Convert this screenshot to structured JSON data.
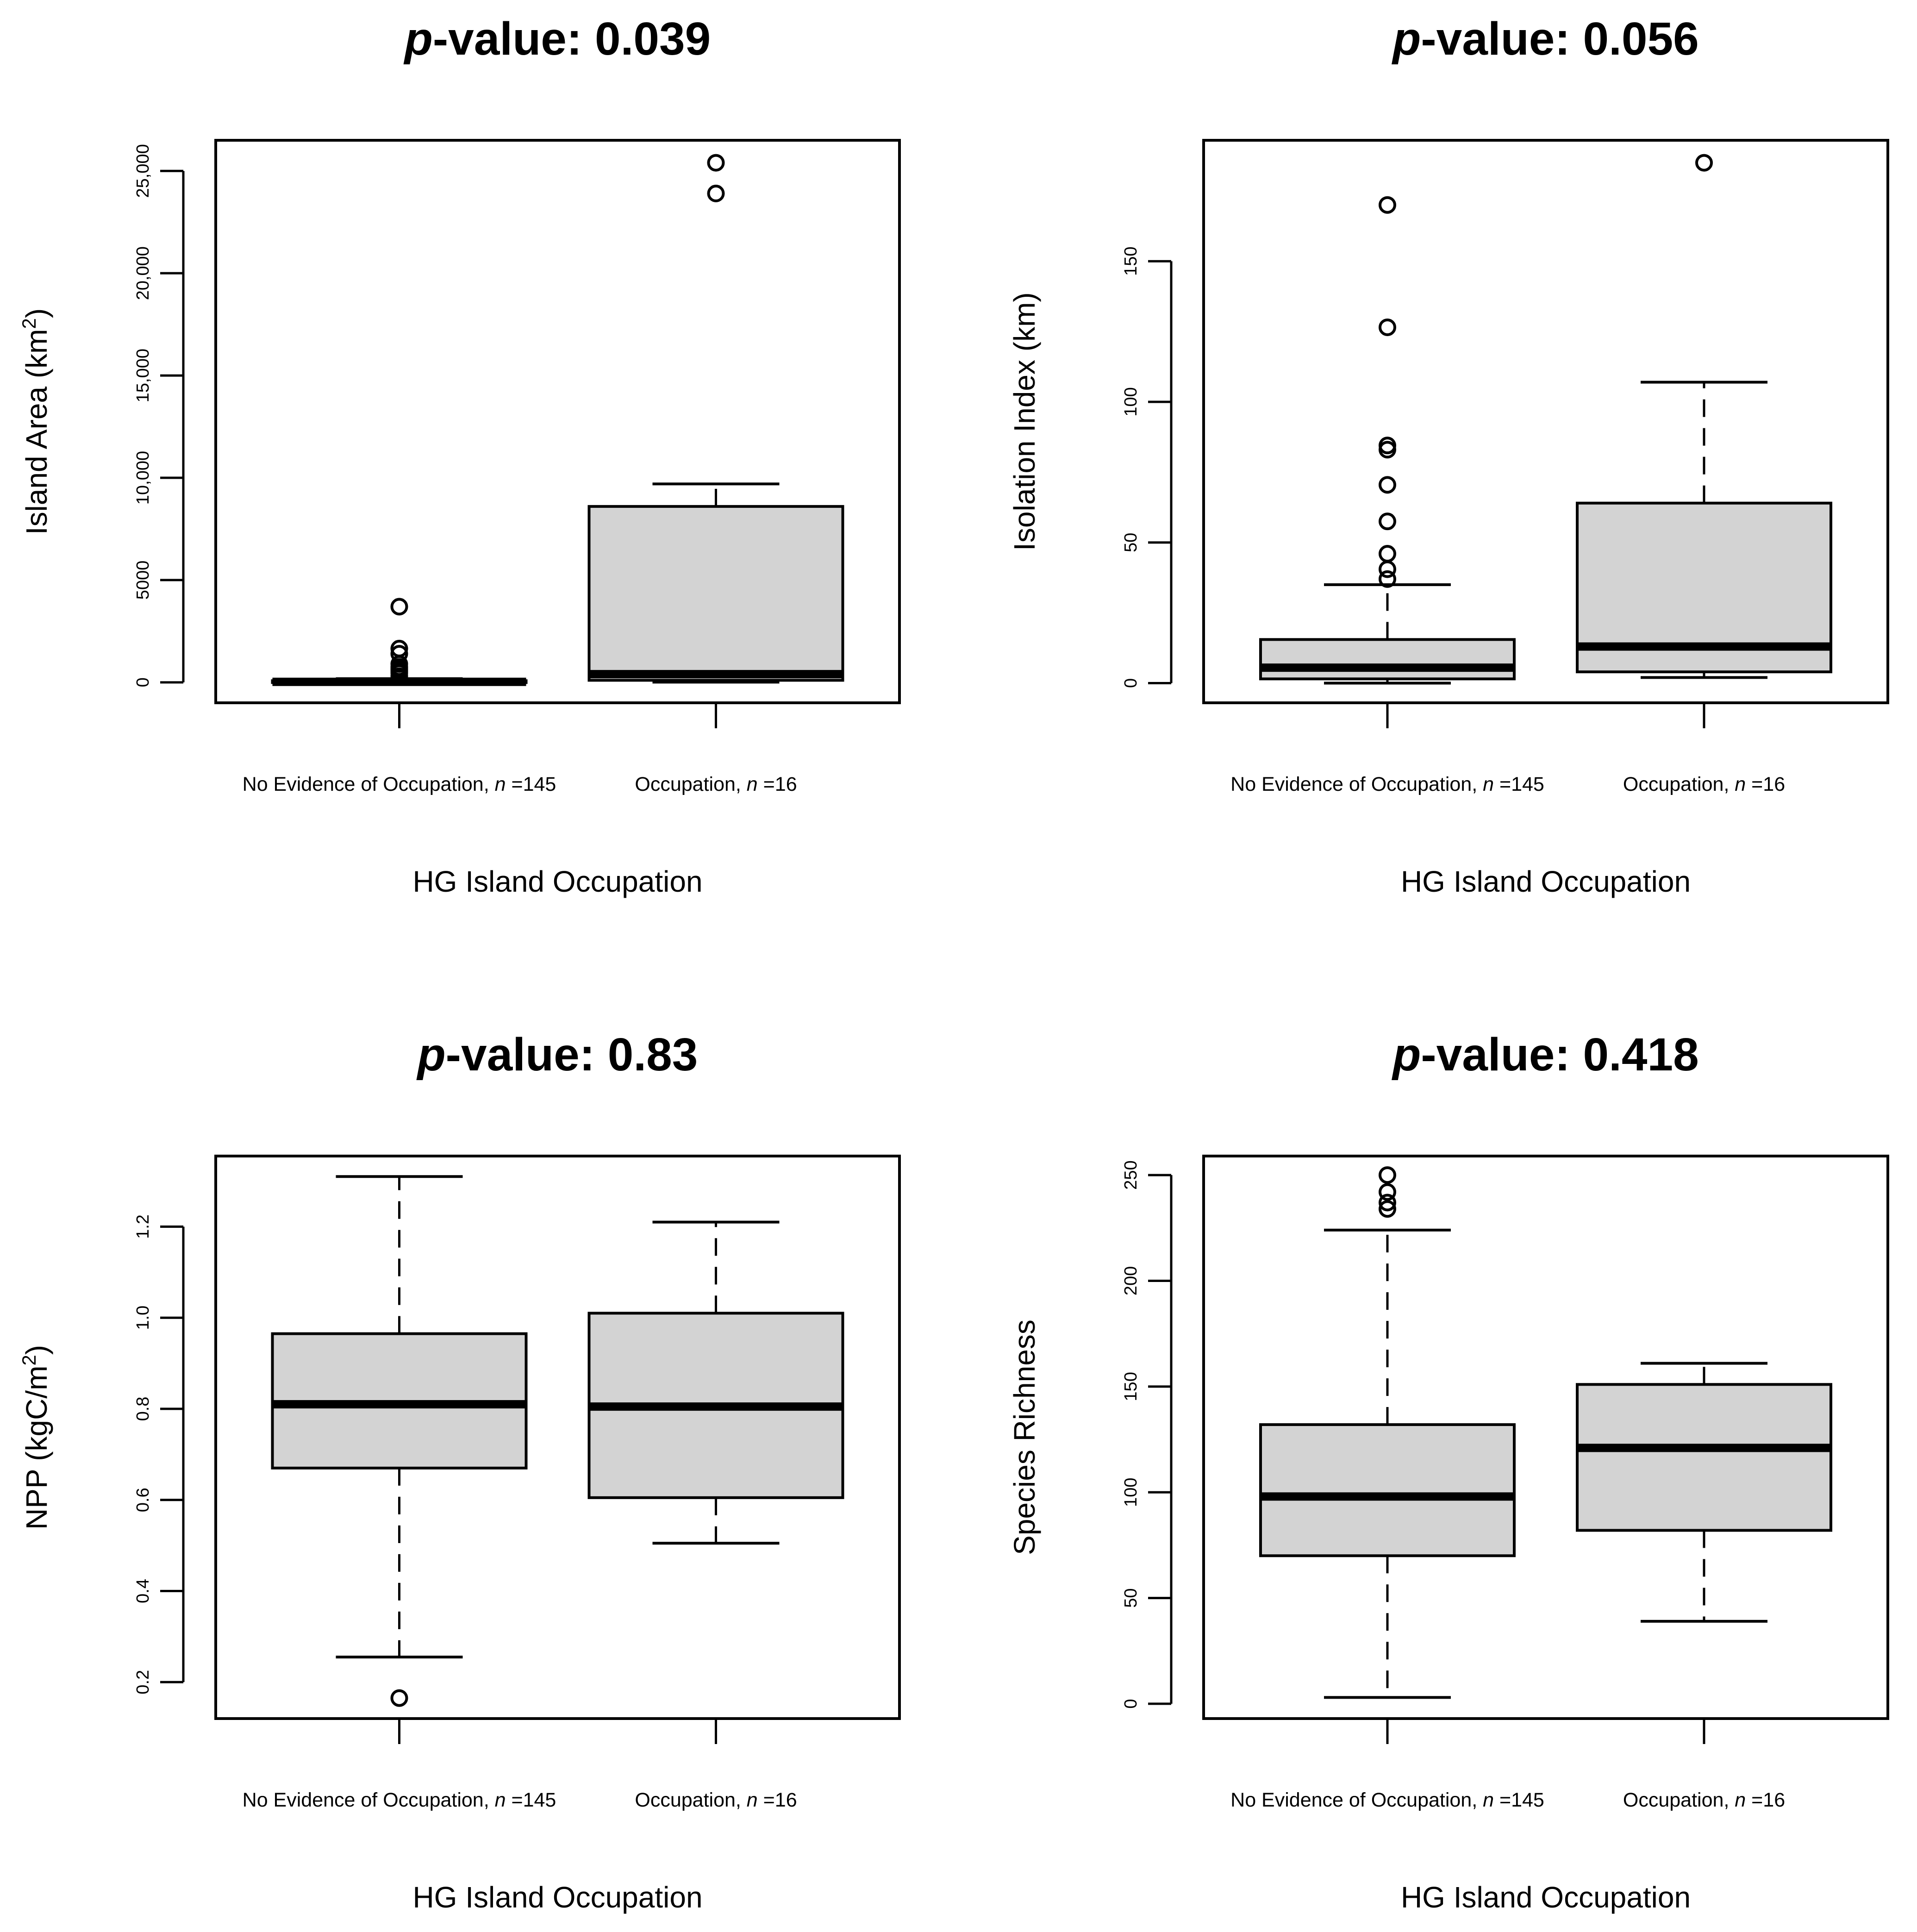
{
  "chart_data": [
    {
      "type": "boxplot",
      "title_p": "p",
      "title_rest": "-value: 0.039",
      "xlabel": "HG Island Occupation",
      "ylabel_main": "Island Area (km",
      "ylabel_sup": "2",
      "ylabel_tail": ")",
      "ylim": [
        -1000,
        26500
      ],
      "yticks": [
        0,
        5000,
        10000,
        15000,
        20000,
        25000
      ],
      "ytick_labels": [
        "0",
        "5000",
        "10,000",
        "15,000",
        "20,000",
        "25,000"
      ],
      "groups": [
        {
          "label_prefix": "No Evidence of Occupation, ",
          "label_n": "n",
          "label_suffix": " =145",
          "whisker_low": 0,
          "q1": 5,
          "median": 25,
          "q3": 80,
          "whisker_high": 180,
          "outliers": [
            300,
            450,
            550,
            650,
            750,
            900,
            1400,
            1650,
            3700
          ]
        },
        {
          "label_prefix": "Occupation, ",
          "label_n": "n",
          "label_suffix": " =16",
          "whisker_low": 10,
          "q1": 100,
          "median": 400,
          "q3": 8600,
          "whisker_high": 9700,
          "outliers": [
            23900,
            25400
          ]
        }
      ]
    },
    {
      "type": "boxplot",
      "title_p": "p",
      "title_rest": "-value: 0.056",
      "xlabel": "HG Island Occupation",
      "ylabel_main": "Isolation Index (km)",
      "ylabel_sup": "",
      "ylabel_tail": "",
      "ylim": [
        -7,
        193
      ],
      "yticks": [
        0,
        50,
        100,
        150
      ],
      "ytick_labels": [
        "0",
        "50",
        "100",
        "150"
      ],
      "groups": [
        {
          "label_prefix": "No Evidence of Occupation, ",
          "label_n": "n",
          "label_suffix": " =145",
          "whisker_low": 0,
          "q1": 1.5,
          "median": 5.5,
          "q3": 15.5,
          "whisker_high": 35,
          "outliers": [
            37,
            40.5,
            46,
            57.5,
            70.5,
            83,
            84.5,
            126.5,
            170
          ]
        },
        {
          "label_prefix": "Occupation, ",
          "label_n": "n",
          "label_suffix": " =16",
          "whisker_low": 2,
          "q1": 4,
          "median": 13,
          "q3": 64,
          "whisker_high": 107,
          "outliers": [
            185
          ]
        }
      ]
    },
    {
      "type": "boxplot",
      "title_p": "p",
      "title_rest": "-value: 0.83",
      "xlabel": "HG Island Occupation",
      "ylabel_main": "NPP (kgC/m",
      "ylabel_sup": "2",
      "ylabel_tail": ")",
      "ylim": [
        0.12,
        1.355
      ],
      "yticks": [
        0.2,
        0.4,
        0.6,
        0.8,
        1.0,
        1.2
      ],
      "ytick_labels": [
        "0.2",
        "0.4",
        "0.6",
        "0.8",
        "1.0",
        "1.2"
      ],
      "groups": [
        {
          "label_prefix": "No Evidence of Occupation, ",
          "label_n": "n",
          "label_suffix": " =145",
          "whisker_low": 0.255,
          "q1": 0.67,
          "median": 0.81,
          "q3": 0.965,
          "whisker_high": 1.31,
          "outliers": [
            0.165
          ]
        },
        {
          "label_prefix": "Occupation, ",
          "label_n": "n",
          "label_suffix": " =16",
          "whisker_low": 0.505,
          "q1": 0.605,
          "median": 0.805,
          "q3": 1.01,
          "whisker_high": 1.21,
          "outliers": []
        }
      ]
    },
    {
      "type": "boxplot",
      "title_p": "p",
      "title_rest": "-value: 0.418",
      "xlabel": "HG Island Occupation",
      "ylabel_main": "Species Richness",
      "ylabel_sup": "",
      "ylabel_tail": "",
      "ylim": [
        -7,
        259
      ],
      "yticks": [
        0,
        50,
        100,
        150,
        200,
        250
      ],
      "ytick_labels": [
        "0",
        "50",
        "100",
        "150",
        "200",
        "250"
      ],
      "groups": [
        {
          "label_prefix": "No Evidence of Occupation, ",
          "label_n": "n",
          "label_suffix": " =145",
          "whisker_low": 3,
          "q1": 70,
          "median": 98,
          "q3": 132,
          "whisker_high": 224,
          "outliers": [
            234,
            237,
            242,
            250
          ]
        },
        {
          "label_prefix": "Occupation, ",
          "label_n": "n",
          "label_suffix": " =16",
          "whisker_low": 39,
          "q1": 82,
          "median": 121,
          "q3": 151,
          "whisker_high": 161,
          "outliers": []
        }
      ]
    }
  ]
}
